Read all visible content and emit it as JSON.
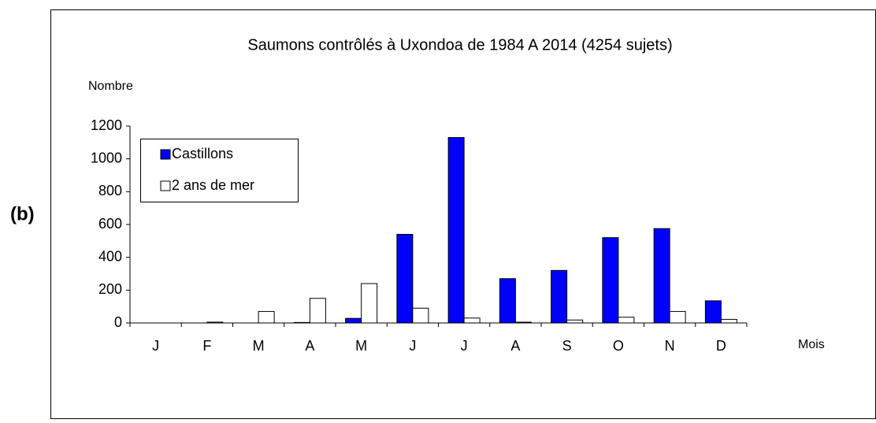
{
  "panel_label": "(b)",
  "chart_data": {
    "type": "bar",
    "title": "Saumons contrôlés à Uxondoa de 1984 A 2014 (4254 sujets)",
    "y_label": "Nombre",
    "x_label": "Mois",
    "categories": [
      "J",
      "F",
      "M",
      "A",
      "M",
      "J",
      "J",
      "A",
      "S",
      "O",
      "N",
      "D"
    ],
    "series": [
      {
        "name": "Castillons",
        "color": "#0000ff",
        "values": [
          0,
          0,
          0,
          3,
          28,
          540,
          1130,
          270,
          320,
          520,
          575,
          135
        ]
      },
      {
        "name": "2 ans de mer",
        "color": "#ffffff",
        "values": [
          0,
          5,
          70,
          150,
          240,
          90,
          30,
          5,
          18,
          35,
          70,
          22
        ]
      }
    ],
    "ylim": [
      0,
      1200
    ],
    "yticks": [
      0,
      200,
      400,
      600,
      800,
      1000,
      1200
    ],
    "legend": "upper left",
    "grid": false
  }
}
